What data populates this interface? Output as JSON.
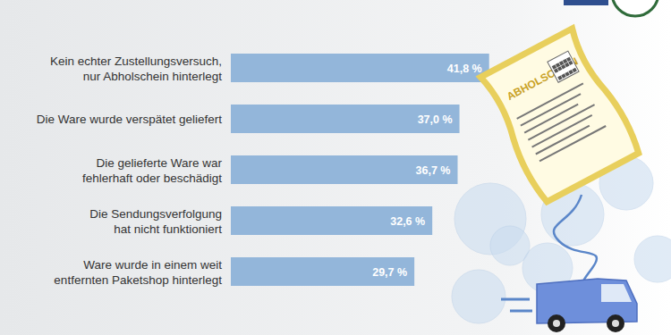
{
  "chart_data": {
    "type": "bar",
    "orientation": "horizontal",
    "categories": [
      "Kein echter Zustellungsversuch,\nnur Abholschein hinterlegt",
      "Die Ware wurde verspätet geliefert",
      "Die gelieferte Ware war\nfehlerhaft oder beschädigt",
      "Die Sendungsverfolgung\nhat nicht funktioniert",
      "Ware wurde in einem weit\nentfernten Paketshop hinterlegt"
    ],
    "values": [
      41.8,
      37.0,
      36.7,
      32.6,
      29.7
    ],
    "value_labels": [
      "41,8 %",
      "37,0 %",
      "36,7 %",
      "32,6 %",
      "29,7 %"
    ],
    "color": "#93b6da",
    "xlim": [
      0,
      43
    ],
    "data_labels": true,
    "grid": false,
    "annotations": [
      "ABHOLSCHEIN"
    ]
  }
}
